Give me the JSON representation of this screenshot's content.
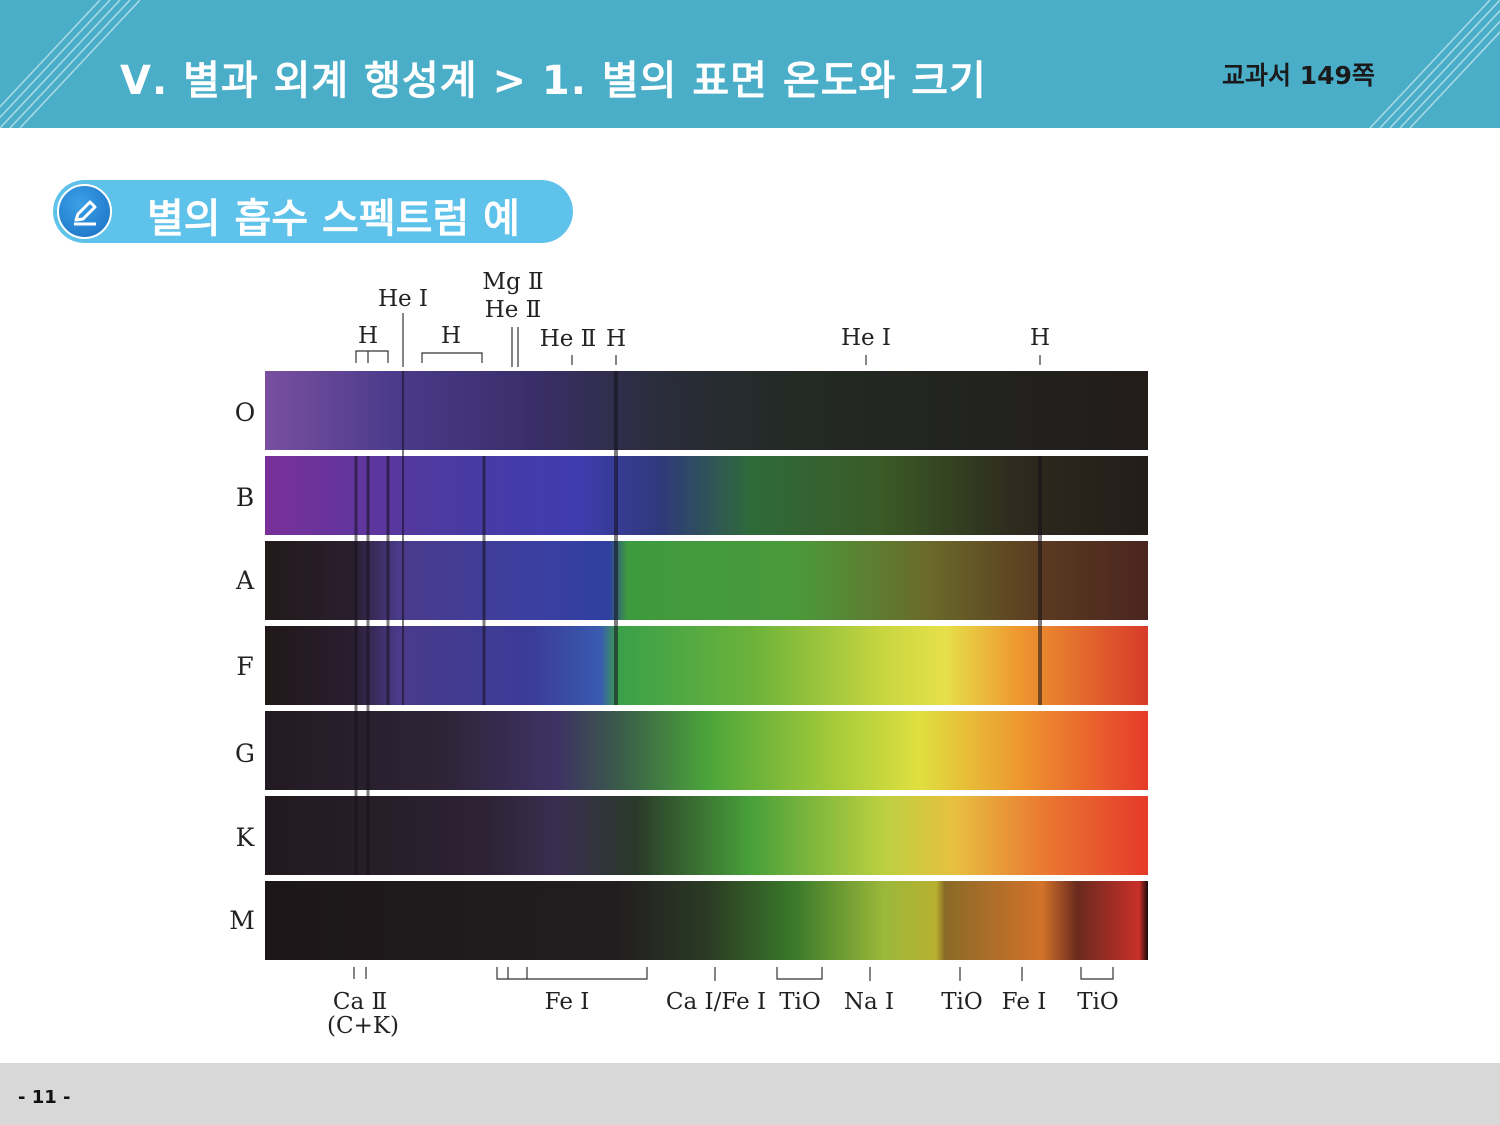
{
  "header": {
    "title": "Ⅴ. 별과 외계 행성계 > 1. 별의 표면 온도와 크기",
    "page_ref": "교과서  149쪽"
  },
  "section": {
    "title": "별의 흡수 스펙트럼 예",
    "icon": "pencil-icon"
  },
  "spectrum": {
    "rows": [
      "O",
      "B",
      "A",
      "F",
      "G",
      "K",
      "M"
    ],
    "top_labels": {
      "h1": "H",
      "he1_a": "He Ⅰ",
      "h2": "H",
      "mg2": "Mg Ⅱ",
      "he2_a": "He Ⅱ",
      "he2_b": "He Ⅱ",
      "h3": "H",
      "he1_b": "He Ⅰ",
      "h4": "H"
    },
    "bottom_labels": {
      "ca2": "Ca Ⅱ",
      "ck": "(C+K)",
      "fe1_a": "Fe Ⅰ",
      "cafe": "Ca Ⅰ/Fe Ⅰ",
      "tio_a": "TiO",
      "na1": "Na Ⅰ",
      "tio_b": "TiO",
      "fe1_b": "Fe Ⅰ",
      "tio_c": "TiO"
    }
  },
  "footer": {
    "page_number": "- 11 -"
  }
}
